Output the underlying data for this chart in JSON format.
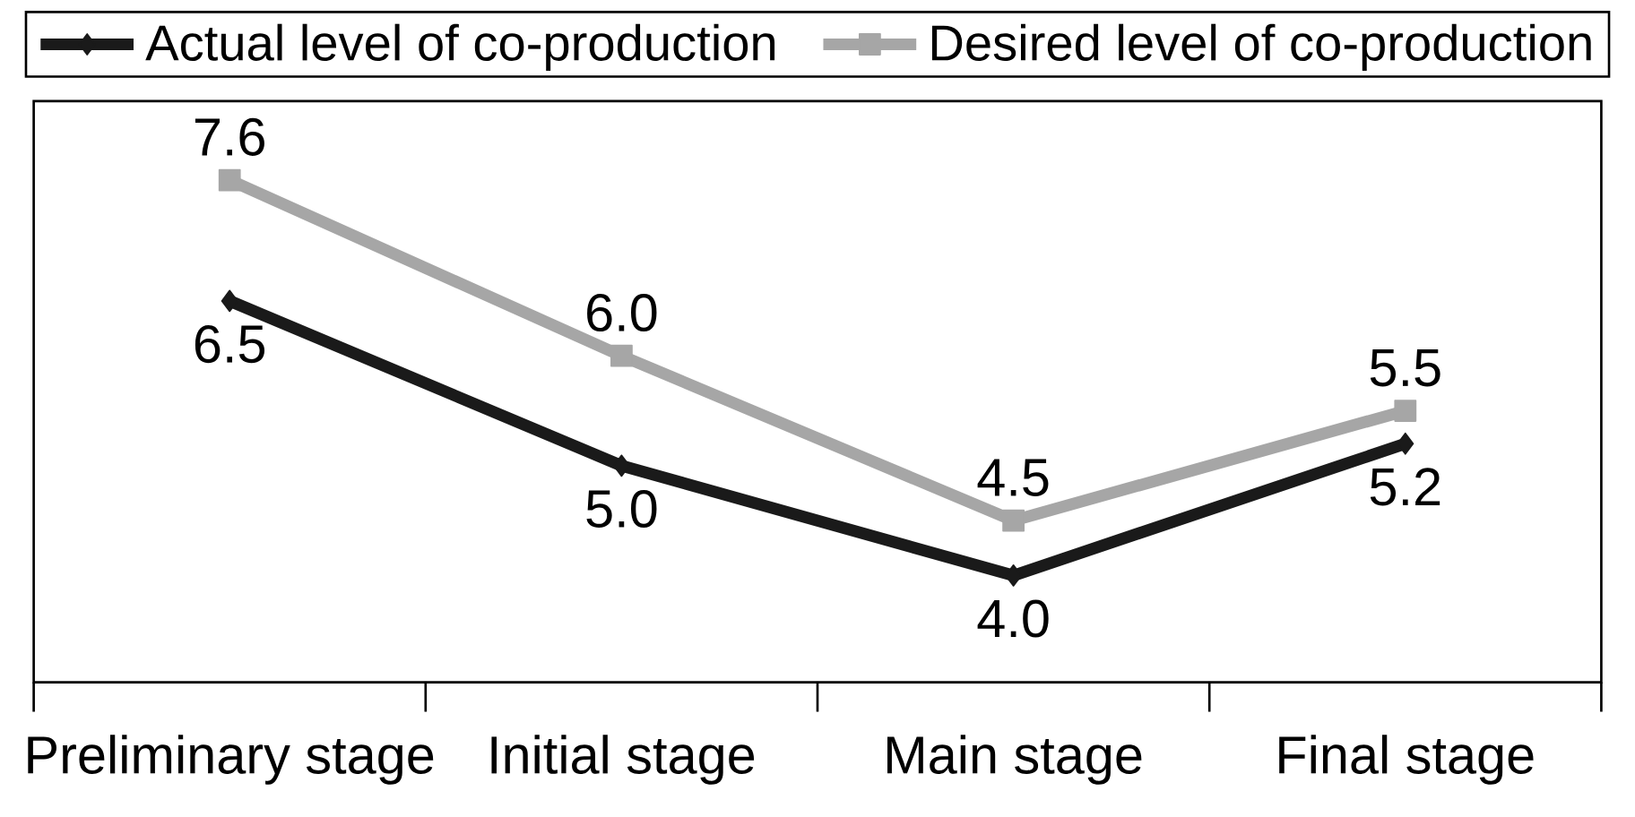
{
  "chart_data": {
    "type": "line",
    "categories": [
      "Preliminary stage",
      "Initial stage",
      "Main stage",
      "Final stage"
    ],
    "series": [
      {
        "name": "Actual level of co-production",
        "color": "#1a1a1a",
        "marker": "diamond",
        "values": [
          6.5,
          5.0,
          4.0,
          5.2
        ],
        "value_labels": [
          "6.5",
          "5.0",
          "4.0",
          "5.2"
        ]
      },
      {
        "name": "Desired level of co-production",
        "color": "#a6a6a6",
        "marker": "square",
        "values": [
          7.6,
          6.0,
          4.5,
          5.5
        ],
        "value_labels": [
          "7.6",
          "6.0",
          "4.5",
          "5.5"
        ]
      }
    ],
    "tick_labels": "x",
    "legend": "top",
    "grid": false,
    "line_style": "solid"
  }
}
